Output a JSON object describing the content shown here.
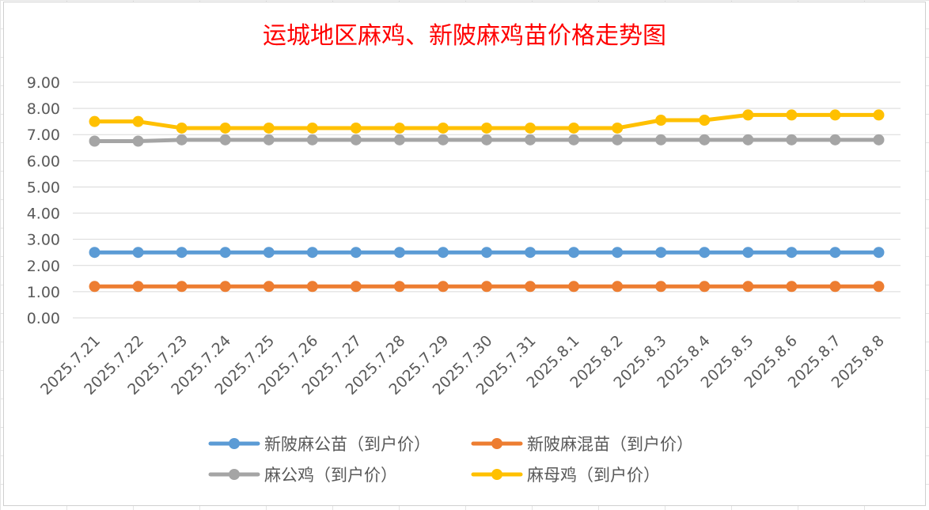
{
  "chart_data": {
    "type": "line",
    "title": "运城地区麻鸡、新陂麻鸡苗价格走势图",
    "xlabel": "",
    "ylabel": "",
    "ylim": [
      0,
      9
    ],
    "yticks": [
      "0.00",
      "1.00",
      "2.00",
      "3.00",
      "4.00",
      "5.00",
      "6.00",
      "7.00",
      "8.00",
      "9.00"
    ],
    "grid": true,
    "legend_position": "bottom",
    "categories": [
      "2025.7.21",
      "2025.7.22",
      "2025.7.23",
      "2025.7.24",
      "2025.7.25",
      "2025.7.26",
      "2025.7.27",
      "2025.7.28",
      "2025.7.29",
      "2025.7.30",
      "2025.7.31",
      "2025.8.1",
      "2025.8.2",
      "2025.8.3",
      "2025.8.4",
      "2025.8.5",
      "2025.8.6",
      "2025.8.7",
      "2025.8.8"
    ],
    "series": [
      {
        "name": "新陂麻公苗（到户价）",
        "color": "#5b9bd5",
        "values": [
          2.5,
          2.5,
          2.5,
          2.5,
          2.5,
          2.5,
          2.5,
          2.5,
          2.5,
          2.5,
          2.5,
          2.5,
          2.5,
          2.5,
          2.5,
          2.5,
          2.5,
          2.5,
          2.5
        ]
      },
      {
        "name": "新陂麻混苗（到户价）",
        "color": "#ed7d31",
        "values": [
          1.2,
          1.2,
          1.2,
          1.2,
          1.2,
          1.2,
          1.2,
          1.2,
          1.2,
          1.2,
          1.2,
          1.2,
          1.2,
          1.2,
          1.2,
          1.2,
          1.2,
          1.2,
          1.2
        ]
      },
      {
        "name": "麻公鸡（到户价）",
        "color": "#a5a5a5",
        "values": [
          6.75,
          6.75,
          6.8,
          6.8,
          6.8,
          6.8,
          6.8,
          6.8,
          6.8,
          6.8,
          6.8,
          6.8,
          6.8,
          6.8,
          6.8,
          6.8,
          6.8,
          6.8,
          6.8
        ]
      },
      {
        "name": "麻母鸡（到户价）",
        "color": "#ffc000",
        "values": [
          7.5,
          7.5,
          7.25,
          7.25,
          7.25,
          7.25,
          7.25,
          7.25,
          7.25,
          7.25,
          7.25,
          7.25,
          7.25,
          7.55,
          7.55,
          7.75,
          7.75,
          7.75,
          7.75
        ]
      }
    ]
  },
  "colors": {
    "title": "#ff0000",
    "axis_text": "#595959",
    "gridline": "#d9d9d9"
  }
}
